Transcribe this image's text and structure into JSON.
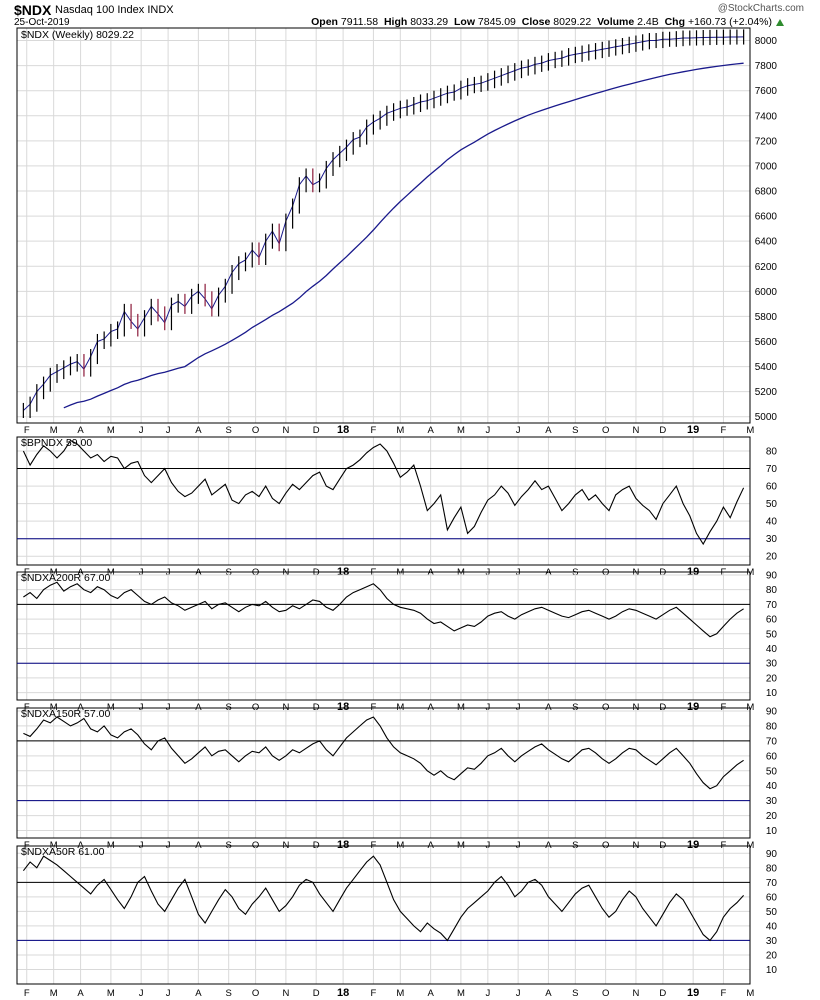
{
  "header": {
    "symbol": "$NDX",
    "name": "Nasdaq 100 Index INDX",
    "date": "25-Oct-2019",
    "brand": "@StockCharts.com",
    "open_label": "Open",
    "open": "7911.58",
    "high_label": "High",
    "high": "8033.29",
    "low_label": "Low",
    "low": "7845.09",
    "close_label": "Close",
    "close": "8029.22",
    "volume_label": "Volume",
    "volume": "2.4B",
    "chg_label": "Chg",
    "chg": "+160.73 (+2.04%)"
  },
  "colors": {
    "up": "#000000",
    "down": "#8b1a3a",
    "ma": "#1a1a8c",
    "grid": "#d9d9d9",
    "refline_top": "#000000",
    "refline_bottom": "#000080",
    "chg_up": "#2e8b2e"
  },
  "x_axis": {
    "weeks": 108,
    "months": [
      {
        "label": "F",
        "week": 0.5
      },
      {
        "label": "M",
        "week": 4.5
      },
      {
        "label": "A",
        "week": 8.5
      },
      {
        "label": "M",
        "week": 13
      },
      {
        "label": "J",
        "week": 17.5
      },
      {
        "label": "J",
        "week": 21.5
      },
      {
        "label": "A",
        "week": 26
      },
      {
        "label": "S",
        "week": 30.5
      },
      {
        "label": "O",
        "week": 34.5
      },
      {
        "label": "N",
        "week": 39
      },
      {
        "label": "D",
        "week": 43.5
      },
      {
        "label": "18",
        "week": 47.5,
        "year": true
      },
      {
        "label": "F",
        "week": 52
      },
      {
        "label": "M",
        "week": 56
      },
      {
        "label": "A",
        "week": 60.5
      },
      {
        "label": "M",
        "week": 65
      },
      {
        "label": "J",
        "week": 69
      },
      {
        "label": "J",
        "week": 73.5
      },
      {
        "label": "A",
        "week": 78
      },
      {
        "label": "S",
        "week": 82
      },
      {
        "label": "O",
        "week": 86.5
      },
      {
        "label": "N",
        "week": 91
      },
      {
        "label": "D",
        "week": 95
      },
      {
        "label": "19",
        "week": 99.5,
        "year": true
      },
      {
        "label": "F",
        "week": 104
      },
      {
        "label": "M",
        "week": 108
      }
    ]
  },
  "chart_data": [
    {
      "type": "candlestick",
      "title": "$NDX (Weekly) 8029.22",
      "ylim": [
        4950,
        8100
      ],
      "yticks": [
        5000,
        5200,
        5400,
        5600,
        5800,
        6000,
        6200,
        6400,
        6600,
        6800,
        7000,
        7200,
        7400,
        7600,
        7800,
        8000
      ],
      "moving_average": "40-week",
      "x": [
        0,
        1,
        2,
        3,
        4,
        5,
        6,
        7,
        8,
        9,
        10,
        11,
        12,
        13,
        14,
        15,
        16,
        17,
        18,
        19,
        20,
        21,
        22,
        23,
        24,
        25,
        26,
        27,
        28,
        29,
        30,
        31,
        32,
        33,
        34,
        35,
        36,
        37,
        38,
        39,
        40,
        41,
        42,
        43,
        44,
        45,
        46,
        47,
        48,
        49,
        50,
        51,
        52,
        53,
        54,
        55,
        56,
        57,
        58,
        59,
        60,
        61,
        62,
        63,
        64,
        65,
        66,
        67,
        68,
        69,
        70,
        71,
        72,
        73,
        74,
        75,
        76,
        77,
        78,
        79,
        80,
        81,
        82,
        83,
        84,
        85,
        86,
        87,
        88,
        89,
        90,
        91,
        92,
        93,
        94,
        95,
        96,
        97,
        98,
        99,
        100,
        101,
        102,
        103,
        104,
        105,
        106,
        107
      ],
      "close": [
        5050,
        5100,
        5200,
        5260,
        5330,
        5360,
        5390,
        5420,
        5440,
        5380,
        5480,
        5600,
        5620,
        5680,
        5700,
        5840,
        5760,
        5700,
        5790,
        5880,
        5820,
        5750,
        5890,
        5920,
        5880,
        5960,
        6000,
        5940,
        5860,
        5970,
        6040,
        6150,
        6220,
        6250,
        6330,
        6270,
        6400,
        6480,
        6380,
        6560,
        6680,
        6850,
        6920,
        6850,
        6880,
        6980,
        7050,
        7100,
        7150,
        7210,
        7230,
        7310,
        7350,
        7380,
        7420,
        7440,
        7460,
        7470,
        7490,
        7510,
        7520,
        7540,
        7560,
        7580,
        7590,
        7620,
        7640,
        7650,
        7660,
        7680,
        7700,
        7720,
        7740,
        7760,
        7780,
        7790,
        7810,
        7820,
        7840,
        7850,
        7860,
        7880,
        7890,
        7900,
        7910,
        7920,
        7930,
        7940,
        7950,
        7960,
        7970,
        7980,
        7990,
        8000,
        8000,
        8010,
        8010,
        8015,
        8020,
        8020,
        8022,
        8024,
        8025,
        8026,
        8027,
        8028,
        8028,
        8029
      ]
    },
    {
      "type": "line",
      "title": "$BPNDX 59.00",
      "ylim": [
        15,
        88
      ],
      "yticks": [
        20,
        30,
        40,
        50,
        60,
        70,
        80
      ],
      "ref_lines": [
        70,
        30
      ],
      "x": [
        0,
        1,
        2,
        3,
        4,
        5,
        6,
        7,
        8,
        9,
        10,
        11,
        12,
        13,
        14,
        15,
        16,
        17,
        18,
        19,
        20,
        21,
        22,
        23,
        24,
        25,
        26,
        27,
        28,
        29,
        30,
        31,
        32,
        33,
        34,
        35,
        36,
        37,
        38,
        39,
        40,
        41,
        42,
        43,
        44,
        45,
        46,
        47,
        48,
        49,
        50,
        51,
        52,
        53,
        54,
        55,
        56,
        57,
        58,
        59,
        60,
        61,
        62,
        63,
        64,
        65,
        66,
        67,
        68,
        69,
        70,
        71,
        72,
        73,
        74,
        75,
        76,
        77,
        78,
        79,
        80,
        81,
        82,
        83,
        84,
        85,
        86,
        87,
        88,
        89,
        90,
        91,
        92,
        93,
        94,
        95,
        96,
        97,
        98,
        99,
        100,
        101,
        102,
        103,
        104,
        105,
        106,
        107
      ],
      "values": [
        80,
        72,
        78,
        83,
        80,
        76,
        80,
        86,
        84,
        80,
        76,
        78,
        74,
        77,
        76,
        70,
        73,
        74,
        66,
        62,
        66,
        70,
        62,
        57,
        54,
        56,
        60,
        64,
        55,
        58,
        61,
        52,
        50,
        55,
        57,
        54,
        60,
        53,
        50,
        56,
        61,
        58,
        62,
        66,
        68,
        60,
        58,
        64,
        70,
        72,
        75,
        79,
        82,
        84,
        80,
        73,
        65,
        68,
        72,
        60,
        46,
        50,
        55,
        35,
        42,
        48,
        33,
        37,
        45,
        52,
        55,
        60,
        56,
        49,
        54,
        58,
        63,
        58,
        60,
        53,
        46,
        50,
        55,
        58,
        52,
        55,
        50,
        46,
        55,
        58,
        60,
        53,
        49,
        46,
        41,
        50,
        55,
        60,
        50,
        43,
        33,
        27,
        34,
        40,
        48,
        42,
        51,
        59
      ]
    },
    {
      "type": "line",
      "title": "$NDXA200R 67.00",
      "ylim": [
        5,
        92
      ],
      "yticks": [
        10,
        20,
        30,
        40,
        50,
        60,
        70,
        80,
        90
      ],
      "ref_lines": [
        70,
        30
      ],
      "x": [
        0,
        1,
        2,
        3,
        4,
        5,
        6,
        7,
        8,
        9,
        10,
        11,
        12,
        13,
        14,
        15,
        16,
        17,
        18,
        19,
        20,
        21,
        22,
        23,
        24,
        25,
        26,
        27,
        28,
        29,
        30,
        31,
        32,
        33,
        34,
        35,
        36,
        37,
        38,
        39,
        40,
        41,
        42,
        43,
        44,
        45,
        46,
        47,
        48,
        49,
        50,
        51,
        52,
        53,
        54,
        55,
        56,
        57,
        58,
        59,
        60,
        61,
        62,
        63,
        64,
        65,
        66,
        67,
        68,
        69,
        70,
        71,
        72,
        73,
        74,
        75,
        76,
        77,
        78,
        79,
        80,
        81,
        82,
        83,
        84,
        85,
        86,
        87,
        88,
        89,
        90,
        91,
        92,
        93,
        94,
        95,
        96,
        97,
        98,
        99,
        100,
        101,
        102,
        103,
        104,
        105,
        106,
        107
      ],
      "values": [
        75,
        78,
        74,
        80,
        83,
        85,
        79,
        82,
        84,
        80,
        78,
        82,
        80,
        76,
        74,
        78,
        80,
        76,
        72,
        70,
        73,
        75,
        71,
        69,
        66,
        68,
        70,
        72,
        67,
        70,
        71,
        68,
        65,
        68,
        70,
        69,
        72,
        68,
        65,
        66,
        69,
        67,
        70,
        73,
        72,
        68,
        66,
        70,
        75,
        78,
        80,
        82,
        84,
        80,
        74,
        70,
        68,
        67,
        66,
        64,
        60,
        57,
        58,
        55,
        52,
        54,
        56,
        55,
        58,
        62,
        64,
        65,
        62,
        60,
        63,
        65,
        67,
        68,
        66,
        64,
        62,
        61,
        63,
        65,
        66,
        64,
        62,
        60,
        62,
        65,
        67,
        66,
        64,
        62,
        60,
        63,
        66,
        68,
        64,
        60,
        56,
        52,
        48,
        50,
        55,
        60,
        64,
        67
      ]
    },
    {
      "type": "line",
      "title": "$NDXA150R 57.00",
      "ylim": [
        5,
        92
      ],
      "yticks": [
        10,
        20,
        30,
        40,
        50,
        60,
        70,
        80,
        90
      ],
      "ref_lines": [
        70,
        30
      ],
      "x": [
        0,
        1,
        2,
        3,
        4,
        5,
        6,
        7,
        8,
        9,
        10,
        11,
        12,
        13,
        14,
        15,
        16,
        17,
        18,
        19,
        20,
        21,
        22,
        23,
        24,
        25,
        26,
        27,
        28,
        29,
        30,
        31,
        32,
        33,
        34,
        35,
        36,
        37,
        38,
        39,
        40,
        41,
        42,
        43,
        44,
        45,
        46,
        47,
        48,
        49,
        50,
        51,
        52,
        53,
        54,
        55,
        56,
        57,
        58,
        59,
        60,
        61,
        62,
        63,
        64,
        65,
        66,
        67,
        68,
        69,
        70,
        71,
        72,
        73,
        74,
        75,
        76,
        77,
        78,
        79,
        80,
        81,
        82,
        83,
        84,
        85,
        86,
        87,
        88,
        89,
        90,
        91,
        92,
        93,
        94,
        95,
        96,
        97,
        98,
        99,
        100,
        101,
        102,
        103,
        104,
        105,
        106,
        107
      ],
      "values": [
        75,
        73,
        78,
        84,
        82,
        86,
        83,
        80,
        82,
        85,
        78,
        76,
        80,
        74,
        72,
        76,
        78,
        74,
        68,
        64,
        70,
        72,
        65,
        60,
        55,
        58,
        62,
        66,
        60,
        63,
        64,
        60,
        56,
        60,
        63,
        62,
        66,
        60,
        57,
        60,
        64,
        62,
        65,
        68,
        70,
        64,
        60,
        66,
        72,
        76,
        80,
        84,
        86,
        80,
        72,
        66,
        62,
        60,
        58,
        55,
        50,
        47,
        50,
        46,
        44,
        48,
        52,
        51,
        55,
        60,
        62,
        65,
        60,
        56,
        60,
        63,
        66,
        68,
        64,
        61,
        58,
        56,
        60,
        64,
        65,
        62,
        58,
        55,
        58,
        62,
        65,
        64,
        60,
        57,
        54,
        58,
        62,
        65,
        60,
        55,
        48,
        42,
        38,
        40,
        46,
        50,
        54,
        57
      ]
    },
    {
      "type": "line",
      "title": "$NDXA50R 61.00",
      "ylim": [
        0,
        95
      ],
      "yticks": [
        10,
        20,
        30,
        40,
        50,
        60,
        70,
        80,
        90
      ],
      "ref_lines": [
        70,
        30
      ],
      "x": [
        0,
        1,
        2,
        3,
        4,
        5,
        6,
        7,
        8,
        9,
        10,
        11,
        12,
        13,
        14,
        15,
        16,
        17,
        18,
        19,
        20,
        21,
        22,
        23,
        24,
        25,
        26,
        27,
        28,
        29,
        30,
        31,
        32,
        33,
        34,
        35,
        36,
        37,
        38,
        39,
        40,
        41,
        42,
        43,
        44,
        45,
        46,
        47,
        48,
        49,
        50,
        51,
        52,
        53,
        54,
        55,
        56,
        57,
        58,
        59,
        60,
        61,
        62,
        63,
        64,
        65,
        66,
        67,
        68,
        69,
        70,
        71,
        72,
        73,
        74,
        75,
        76,
        77,
        78,
        79,
        80,
        81,
        82,
        83,
        84,
        85,
        86,
        87,
        88,
        89,
        90,
        91,
        92,
        93,
        94,
        95,
        96,
        97,
        98,
        99,
        100,
        101,
        102,
        103,
        104,
        105,
        106,
        107
      ],
      "values": [
        78,
        84,
        80,
        88,
        85,
        82,
        78,
        74,
        70,
        66,
        62,
        68,
        72,
        65,
        58,
        52,
        60,
        70,
        74,
        64,
        55,
        50,
        58,
        66,
        72,
        60,
        48,
        42,
        50,
        58,
        65,
        60,
        52,
        48,
        55,
        60,
        66,
        58,
        50,
        54,
        60,
        68,
        72,
        70,
        62,
        56,
        50,
        58,
        66,
        72,
        78,
        84,
        88,
        82,
        70,
        58,
        50,
        45,
        40,
        36,
        42,
        38,
        35,
        30,
        38,
        46,
        52,
        56,
        60,
        64,
        70,
        74,
        68,
        60,
        64,
        70,
        72,
        68,
        60,
        55,
        50,
        56,
        62,
        66,
        68,
        60,
        52,
        46,
        50,
        58,
        64,
        60,
        52,
        46,
        40,
        48,
        56,
        62,
        58,
        50,
        42,
        34,
        30,
        36,
        46,
        52,
        56,
        61
      ]
    }
  ]
}
